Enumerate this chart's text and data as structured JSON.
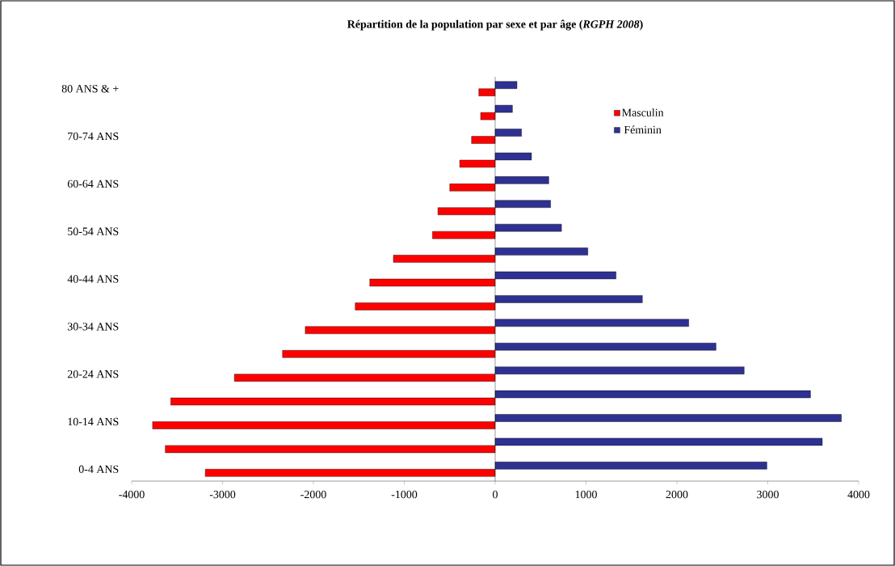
{
  "chart_data": {
    "type": "bar",
    "orientation": "horizontal",
    "title": "Répartition de la population par sexe et par âge (*RGPH 2008*)",
    "categories": [
      "80 ANS & +",
      null,
      "70-74 ANS",
      null,
      "60-64 ANS",
      null,
      "50-54 ANS",
      null,
      "40-44 ANS",
      null,
      "30-34 ANS",
      null,
      "20-24 ANS",
      null,
      "10-14 ANS",
      null,
      "0-4 ANS"
    ],
    "series": [
      {
        "name": "Masculin",
        "color": "#ff0000",
        "values": [
          -180,
          -160,
          -260,
          -390,
          -500,
          -630,
          -690,
          -1120,
          -1380,
          -1540,
          -2090,
          -2340,
          -2870,
          -3570,
          -3770,
          -3630,
          -3190
        ]
      },
      {
        "name": "Féminin",
        "color": "#2e3192",
        "values": [
          240,
          190,
          290,
          400,
          590,
          610,
          730,
          1020,
          1330,
          1620,
          2130,
          2430,
          2740,
          3470,
          3810,
          3600,
          2990
        ]
      }
    ],
    "xlim": [
      -4000,
      4000
    ],
    "xticks": [
      -4000,
      -3000,
      -2000,
      -1000,
      0,
      1000,
      2000,
      3000,
      4000
    ],
    "legend": "top right"
  }
}
